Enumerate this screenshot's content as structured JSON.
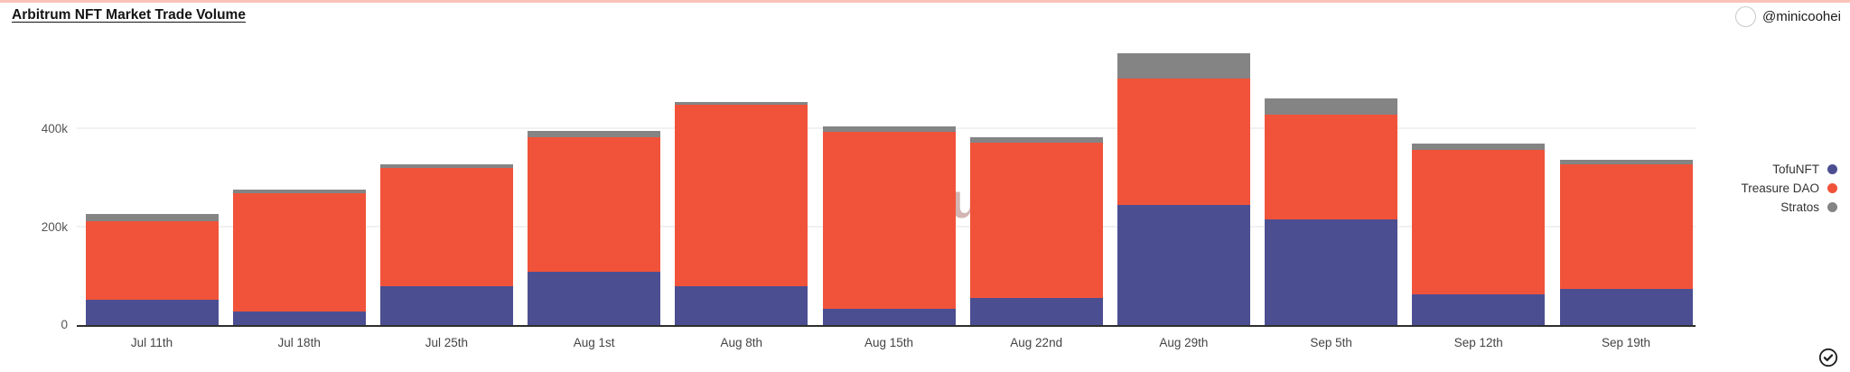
{
  "header": {
    "title": "Arbitrum NFT Market Trade Volume",
    "author_handle": "@minicoohei"
  },
  "watermark": {
    "text": "Dune",
    "logo": "dune-leaf-logo"
  },
  "legend": [
    {
      "label": "TofuNFT",
      "color": "#4C4E92"
    },
    {
      "label": "Treasure DAO",
      "color": "#F1533A"
    },
    {
      "label": "Stratos",
      "color": "#848484"
    }
  ],
  "footer": {
    "check_icon": "check-circle"
  },
  "chart_data": {
    "type": "bar",
    "stacked": true,
    "title": "Arbitrum NFT Market Trade Volume",
    "categories": [
      "Jul 11th",
      "Jul 18th",
      "Jul 25th",
      "Aug 1st",
      "Aug 8th",
      "Aug 15th",
      "Aug 22nd",
      "Aug 29th",
      "Sep 5th",
      "Sep 12th",
      "Sep 19th"
    ],
    "series": [
      {
        "name": "TofuNFT",
        "color": "#4C4E92",
        "values": [
          52000,
          27000,
          79000,
          108000,
          79000,
          34000,
          55000,
          245000,
          215000,
          62000,
          73000
        ]
      },
      {
        "name": "Treasure DAO",
        "color": "#F1533A",
        "values": [
          160000,
          242000,
          241000,
          276000,
          370000,
          360000,
          318000,
          258000,
          214000,
          296000,
          255000
        ]
      },
      {
        "name": "Stratos",
        "color": "#848484",
        "values": [
          14000,
          7000,
          8000,
          12000,
          7000,
          12000,
          11000,
          52000,
          33000,
          13000,
          10000
        ]
      }
    ],
    "totals": [
      226000,
      276000,
      328000,
      396000,
      456000,
      406000,
      384000,
      555000,
      462000,
      371000,
      338000
    ],
    "xlabel": "",
    "ylabel": "",
    "y_ticks": [
      "0",
      "200k",
      "400k"
    ],
    "y_tick_values": [
      0,
      200000,
      400000
    ],
    "ylim": [
      0,
      610000
    ],
    "grid": "horizontal",
    "legend_position": "right"
  }
}
